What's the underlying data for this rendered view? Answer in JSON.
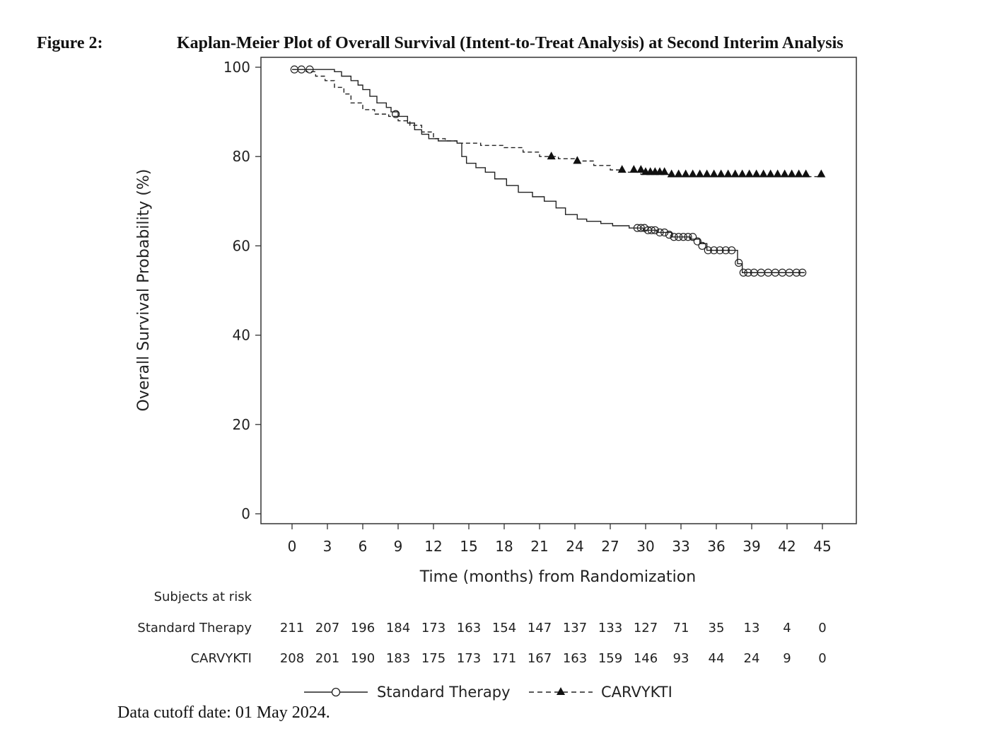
{
  "figure": {
    "label": "Figure 2:",
    "title": "Kaplan-Meier Plot of Overall Survival (Intent-to-Treat Analysis) at Second Interim Analysis",
    "footnote": "Data cutoff date: 01 May 2024."
  },
  "chart_data": {
    "type": "line",
    "subtype": "kaplan-meier",
    "xlabel": "Time (months) from Randomization",
    "ylabel": "Overall Survival Probability (%)",
    "xlim": [
      0,
      45
    ],
    "ylim": [
      0,
      100
    ],
    "xticks": [
      "0",
      "3",
      "6",
      "9",
      "12",
      "15",
      "18",
      "21",
      "24",
      "27",
      "30",
      "33",
      "36",
      "39",
      "42",
      "45"
    ],
    "yticks": [
      "0",
      "20",
      "40",
      "60",
      "80",
      "100"
    ],
    "grid": false,
    "series": [
      {
        "name": "Standard Therapy",
        "line_style": "solid",
        "censor_marker": "open-circle",
        "x": [
          0,
          3.2,
          3.6,
          4.2,
          5.0,
          5.6,
          6.0,
          6.6,
          7.2,
          8.0,
          8.4,
          9.0,
          9.8,
          10.4,
          11.0,
          11.6,
          12.4,
          14.0,
          14.4,
          14.8,
          15.6,
          16.4,
          17.2,
          18.2,
          19.2,
          20.4,
          21.4,
          22.4,
          23.2,
          24.2,
          25.0,
          26.2,
          27.2,
          28.6,
          29.8,
          31.0,
          32.2,
          33.8,
          34.6,
          35.2,
          36.2,
          37.8,
          38.2,
          43.5
        ],
        "y": [
          99.5,
          99.5,
          99.0,
          98.0,
          97.0,
          96.0,
          95.0,
          93.5,
          92.0,
          91.0,
          90.0,
          89.0,
          87.5,
          86.0,
          85.0,
          84.0,
          83.5,
          83.0,
          80.0,
          78.5,
          77.5,
          76.5,
          75.0,
          73.5,
          72.0,
          71.0,
          70.0,
          68.5,
          67.0,
          66.0,
          65.5,
          65.0,
          64.5,
          64.0,
          63.5,
          63.0,
          62.0,
          61.5,
          60.5,
          59.0,
          59.0,
          56.0,
          54.0,
          54.0
        ],
        "censored_x": [
          0.2,
          0.8,
          1.5,
          8.8,
          29.3,
          29.6,
          29.9,
          30.2,
          30.5,
          30.8,
          31.2,
          31.6,
          32.0,
          32.4,
          32.8,
          33.2,
          33.6,
          34.0,
          34.4,
          34.8,
          35.3,
          35.8,
          36.3,
          36.8,
          37.3,
          37.9,
          38.3,
          38.7,
          39.2,
          39.8,
          40.4,
          41.0,
          41.6,
          42.2,
          42.8,
          43.3
        ],
        "censored_y": [
          99.5,
          99.5,
          99.5,
          89.5,
          64,
          64,
          64,
          63.5,
          63.5,
          63.5,
          63,
          63,
          62.5,
          62,
          62,
          62,
          62,
          62,
          61,
          60,
          59,
          59,
          59,
          59,
          59,
          56.2,
          54,
          54,
          54,
          54,
          54,
          54,
          54,
          54,
          54,
          54
        ]
      },
      {
        "name": "CARVYKTI",
        "line_style": "dashed",
        "censor_marker": "filled-triangle",
        "x": [
          0,
          1.2,
          2.0,
          2.8,
          3.6,
          4.4,
          5.0,
          6.0,
          7.0,
          8.2,
          9.0,
          10.0,
          11.0,
          12.0,
          13.0,
          14.0,
          16.0,
          18.0,
          19.6,
          21.0,
          22.6,
          24.0,
          25.6,
          27.0,
          28.0,
          29.6,
          31.0,
          32.0,
          45.0
        ],
        "y": [
          99.5,
          99.0,
          98.0,
          97.0,
          95.5,
          94.0,
          92.0,
          90.5,
          89.5,
          89.0,
          88.0,
          87.0,
          85.5,
          84.0,
          83.5,
          83.0,
          82.5,
          82.0,
          81.0,
          80.0,
          79.5,
          79.0,
          78.0,
          77.0,
          76.5,
          76.0,
          76.0,
          75.5,
          75.5
        ],
        "censored_x": [
          22.0,
          24.2,
          28.0,
          29.0,
          29.6,
          30.0,
          30.4,
          30.8,
          31.2,
          31.6,
          32.2,
          32.8,
          33.4,
          34.0,
          34.6,
          35.2,
          35.8,
          36.4,
          37.0,
          37.6,
          38.2,
          38.8,
          39.4,
          40.0,
          40.6,
          41.2,
          41.8,
          42.4,
          43.0,
          43.6,
          44.9
        ],
        "censored_y": [
          80.0,
          79.0,
          77.0,
          77.0,
          77.0,
          76.5,
          76.5,
          76.5,
          76.5,
          76.5,
          76.0,
          76.0,
          76.0,
          76.0,
          76.0,
          76.0,
          76.0,
          76.0,
          76.0,
          76.0,
          76.0,
          76.0,
          76.0,
          76.0,
          76.0,
          76.0,
          76.0,
          76.0,
          76.0,
          76.0,
          76.0
        ]
      }
    ],
    "at_risk": {
      "header": "Subjects at risk",
      "rows": [
        {
          "label": "Standard Therapy",
          "values": [
            "211",
            "207",
            "196",
            "184",
            "173",
            "163",
            "154",
            "147",
            "137",
            "133",
            "127",
            "71",
            "35",
            "13",
            "4",
            "0"
          ]
        },
        {
          "label": "CARVYKTI",
          "values": [
            "208",
            "201",
            "190",
            "183",
            "175",
            "173",
            "171",
            "167",
            "163",
            "159",
            "146",
            "93",
            "44",
            "24",
            "9",
            "0"
          ]
        }
      ]
    },
    "legend": {
      "position": "bottom",
      "entries": [
        {
          "label": "Standard Therapy"
        },
        {
          "label": "CARVYKTI"
        }
      ]
    }
  }
}
